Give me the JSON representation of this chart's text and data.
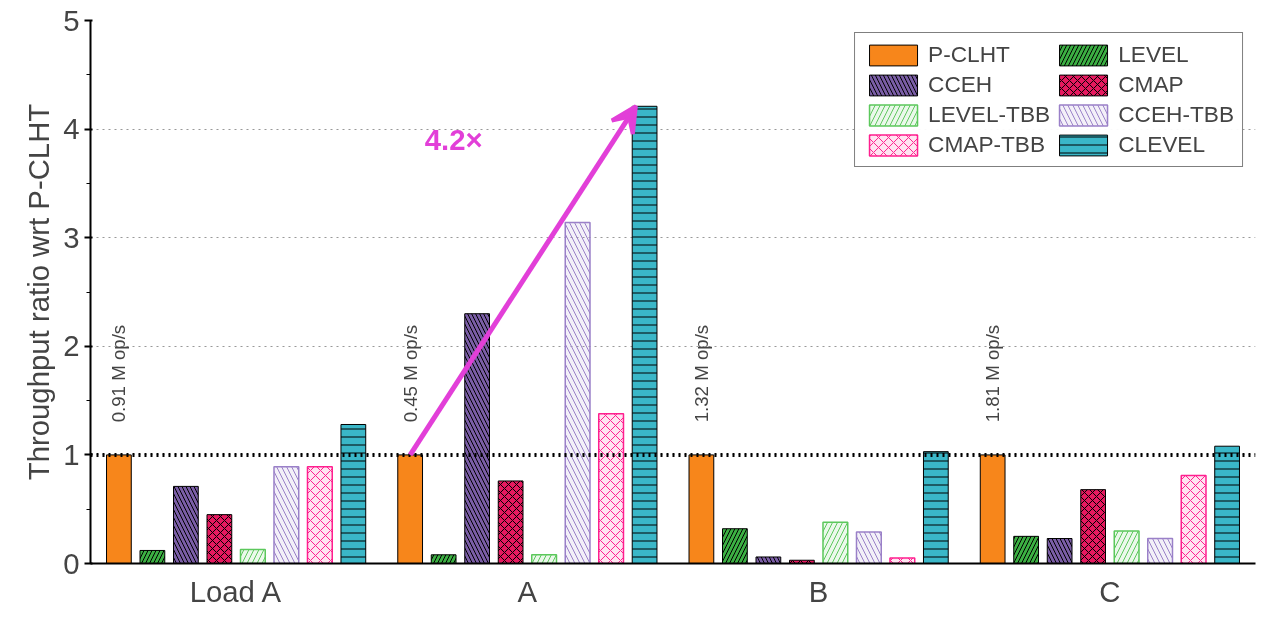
{
  "chart_data": {
    "type": "bar",
    "ylabel": "Throughput ratio wrt P-CLHT",
    "categories": [
      "Load A",
      "A",
      "B",
      "C"
    ],
    "series": [
      {
        "name": "P-CLHT",
        "color": "#f7861b",
        "values": [
          1.0,
          1.0,
          1.0,
          1.0
        ]
      },
      {
        "name": "LEVEL",
        "color": "#3cb043",
        "values": [
          0.12,
          0.08,
          0.32,
          0.25
        ]
      },
      {
        "name": "CCEH",
        "color": "#7b5ea7",
        "values": [
          0.71,
          2.3,
          0.06,
          0.23
        ]
      },
      {
        "name": "CMAP",
        "color": "#e6195f",
        "values": [
          0.45,
          0.76,
          0.03,
          0.68
        ]
      },
      {
        "name": "LEVEL-TBB",
        "color": "#5cc85c",
        "values": [
          0.13,
          0.08,
          0.38,
          0.3
        ]
      },
      {
        "name": "CCEH-TBB",
        "color": "#9a80c8",
        "values": [
          0.89,
          3.14,
          0.29,
          0.23
        ]
      },
      {
        "name": "CMAP-TBB",
        "color": "#ff1f8f",
        "values": [
          0.89,
          1.38,
          0.05,
          0.81
        ]
      },
      {
        "name": "CLEVEL",
        "color": "#3ab7c8",
        "values": [
          1.28,
          4.21,
          1.03,
          1.08
        ]
      }
    ],
    "ylim": [
      0,
      5
    ],
    "yticks": [
      0,
      1,
      2,
      3,
      4,
      5
    ],
    "grid": "y",
    "legend": "top right",
    "ref_lines": [
      {
        "axis": "y",
        "value": 1,
        "color": "#000000",
        "line_style": "dotted"
      }
    ],
    "annotations": [
      "0.91 M op/s",
      "0.45 M op/s",
      "1.32 M op/s",
      "1.81 M op/s",
      "4.2×"
    ]
  }
}
